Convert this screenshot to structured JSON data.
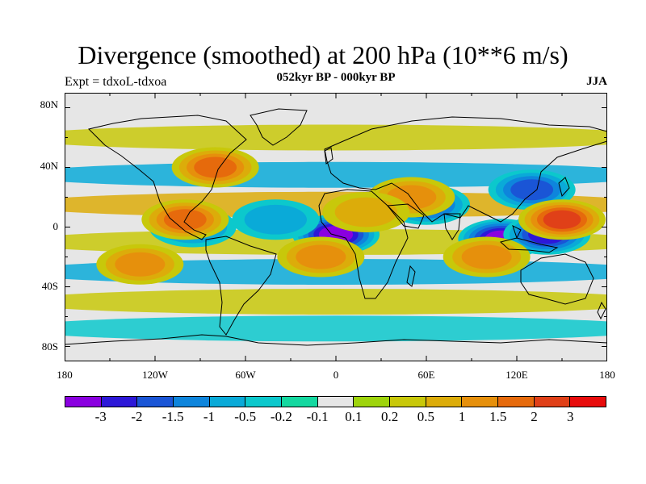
{
  "title": "Divergence (smoothed) at 200 hPa (10**6 m/s)",
  "subtitle": "052kyr BP - 000kyr BP",
  "left_label": "Expt = tdxoL-tdxoa",
  "right_label": "JJA",
  "y_ticks": [
    "80N",
    "40N",
    "0",
    "40S",
    "80S"
  ],
  "x_ticks": [
    "180",
    "120W",
    "60W",
    "0",
    "60E",
    "120E",
    "180"
  ],
  "colorbar": {
    "colors": [
      "#8a00e0",
      "#2d18d8",
      "#1a55d6",
      "#0e85dc",
      "#0aaad8",
      "#0cc8cc",
      "#14d8a0",
      "#e6e6e6",
      "#9ed40c",
      "#c8c80a",
      "#dcac0a",
      "#e6900c",
      "#e66a0c",
      "#e04018",
      "#e80c0c"
    ],
    "labels": [
      "-3",
      "-2",
      "-1.5",
      "-1",
      "-0.5",
      "-0.2",
      "-0.1",
      "0.1",
      "0.2",
      "0.5",
      "1",
      "1.5",
      "2",
      "3"
    ]
  },
  "chart_data": {
    "type": "heatmap",
    "title": "Divergence (smoothed) at 200 hPa (10**6 m/s)",
    "subtitle": "052kyr BP - 000kyr BP",
    "season": "JJA",
    "experiment": "Expt = tdxoL-tdxoa",
    "x_range": [
      -180,
      180
    ],
    "y_range": [
      -90,
      90
    ],
    "levels": [
      -3,
      -2,
      -1.5,
      -1,
      -0.5,
      -0.2,
      -0.1,
      0.1,
      0.2,
      0.5,
      1,
      1.5,
      2,
      3
    ],
    "features": [
      {
        "lon": 0,
        "lat": -5,
        "value": -3.2
      },
      {
        "lon": 110,
        "lat": -8,
        "value": -3.2
      },
      {
        "lon": 140,
        "lat": -5,
        "value": -2.5
      },
      {
        "lon": 130,
        "lat": 25,
        "value": -2.2
      },
      {
        "lon": 60,
        "lat": 15,
        "value": -1.8
      },
      {
        "lon": -95,
        "lat": 0,
        "value": -1.5
      },
      {
        "lon": -40,
        "lat": 5,
        "value": -0.8
      },
      {
        "lon": 150,
        "lat": 5,
        "value": 2.5
      },
      {
        "lon": -80,
        "lat": 40,
        "value": 2.0
      },
      {
        "lon": -100,
        "lat": 5,
        "value": 2.2
      },
      {
        "lon": 50,
        "lat": 20,
        "value": 1.6
      },
      {
        "lon": 100,
        "lat": -20,
        "value": 1.2
      },
      {
        "lon": -130,
        "lat": -25,
        "value": 1.6
      },
      {
        "lon": -10,
        "lat": -20,
        "value": 1.2
      },
      {
        "lon": 20,
        "lat": 10,
        "value": 1.0
      }
    ]
  }
}
